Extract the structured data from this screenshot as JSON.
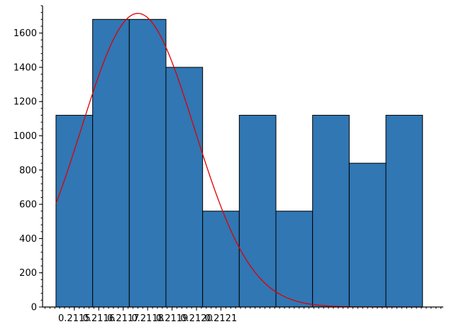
{
  "chart_data": {
    "type": "bar",
    "title": "",
    "xlabel": "",
    "ylabel": "",
    "bins": [
      {
        "x0": 0.211425,
        "x1": 0.211575,
        "count": 1120
      },
      {
        "x0": 0.211575,
        "x1": 0.211725,
        "count": 1680
      },
      {
        "x0": 0.211725,
        "x1": 0.211875,
        "count": 1680
      },
      {
        "x0": 0.211875,
        "x1": 0.212025,
        "count": 1400
      },
      {
        "x0": 0.212025,
        "x1": 0.212175,
        "count": 560
      },
      {
        "x0": 0.212175,
        "x1": 0.212325,
        "count": 1120
      },
      {
        "x0": 0.212325,
        "x1": 0.212475,
        "count": 560
      },
      {
        "x0": 0.212475,
        "x1": 0.212625,
        "count": 1120
      },
      {
        "x0": 0.212625,
        "x1": 0.212775,
        "count": 840
      },
      {
        "x0": 0.212775,
        "x1": 0.212925,
        "count": 1120
      }
    ],
    "curve": {
      "type": "normal-density",
      "mean": 0.21176,
      "peak": 1715,
      "sigma": 0.000232,
      "x_start": 0.211425,
      "x_end": 0.212925
    },
    "xlim": [
      0.21137,
      0.21301
    ],
    "ylim": [
      0,
      1760
    ],
    "x_ticks": [
      {
        "value": 0.2115,
        "label": "0.2115"
      },
      {
        "value": 0.2116,
        "label": "0.2116"
      },
      {
        "value": 0.2117,
        "label": "0.2117"
      },
      {
        "value": 0.2118,
        "label": "0.2118"
      },
      {
        "value": 0.2119,
        "label": "0.2119"
      },
      {
        "value": 0.212,
        "label": "0.2120"
      },
      {
        "value": 0.2121,
        "label": "0.2121"
      }
    ],
    "y_ticks": [
      {
        "value": 0,
        "label": "0"
      },
      {
        "value": 200,
        "label": "200"
      },
      {
        "value": 400,
        "label": "400"
      },
      {
        "value": 600,
        "label": "600"
      },
      {
        "value": 800,
        "label": "800"
      },
      {
        "value": 1000,
        "label": "1000"
      },
      {
        "value": 1200,
        "label": "1200"
      },
      {
        "value": 1400,
        "label": "1400"
      },
      {
        "value": 1600,
        "label": "1600"
      }
    ],
    "y_minor_step": 40,
    "x_minor_step": 2e-05,
    "bar_color": "#3077b4",
    "bar_edge_color": "#000000",
    "curve_color": "#e00000",
    "grid": false,
    "legend": "none"
  }
}
